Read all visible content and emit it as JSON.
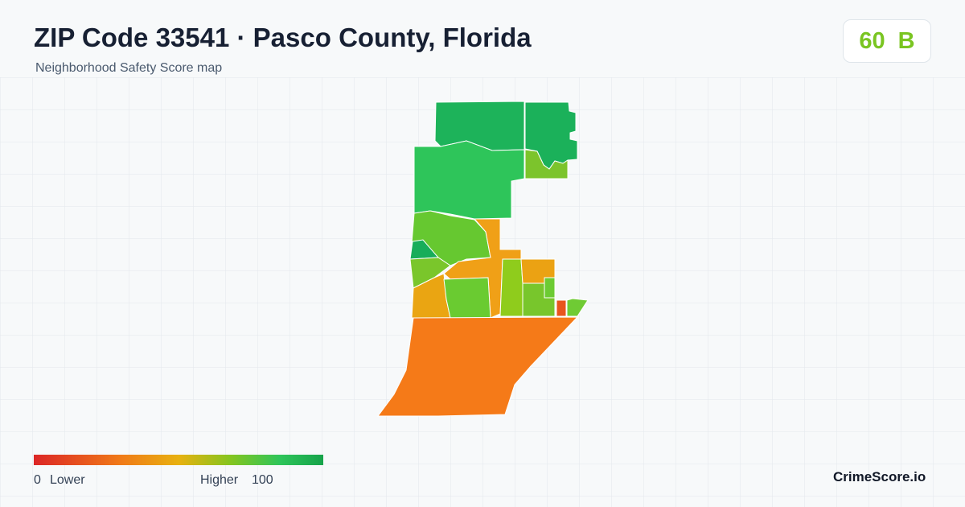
{
  "header": {
    "title": "ZIP Code 33541 · Pasco County, Florida",
    "subtitle": "Neighborhood Safety Score map"
  },
  "badge": {
    "score": 60,
    "grade": "B"
  },
  "legend": {
    "min": "0",
    "min_label": "Lower",
    "max_label": "Higher",
    "max": "100"
  },
  "brand": "CrimeScore.io"
}
